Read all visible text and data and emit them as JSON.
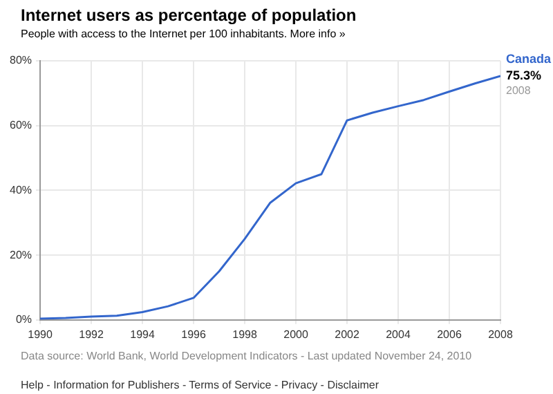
{
  "chart_data": {
    "type": "line",
    "title": "Internet users as percentage of population",
    "subtitle": "People with access to the Internet per 100 inhabitants. More info »",
    "x": [
      1990,
      1991,
      1992,
      1993,
      1994,
      1995,
      1996,
      1997,
      1998,
      1999,
      2000,
      2001,
      2002,
      2003,
      2004,
      2005,
      2006,
      2007,
      2008
    ],
    "series": [
      {
        "name": "Canada",
        "color": "#3366cc",
        "values": [
          0.4,
          0.6,
          1.0,
          1.3,
          2.4,
          4.2,
          6.8,
          15,
          25,
          36.2,
          42.2,
          45,
          61.6,
          64,
          66,
          67.9,
          70.5,
          73,
          75.3
        ],
        "value_labels": [
          null,
          null,
          null,
          null,
          null,
          null,
          null,
          null,
          null,
          null,
          null,
          null,
          null,
          null,
          null,
          null,
          null,
          null,
          "75.3%"
        ]
      }
    ],
    "xlim": [
      1990,
      2008
    ],
    "xticks": [
      1990,
      1992,
      1994,
      1996,
      1998,
      2000,
      2002,
      2004,
      2006,
      2008
    ],
    "ylim": [
      0,
      80
    ],
    "yticks": [
      {
        "value": 0,
        "label": "0%"
      },
      {
        "value": 20,
        "label": "20%"
      },
      {
        "value": 40,
        "label": "40%"
      },
      {
        "value": 60,
        "label": "60%"
      },
      {
        "value": 80,
        "label": "80%"
      }
    ],
    "grid": true,
    "legend": false,
    "marker": "none",
    "line_style": "solid",
    "annotations": [
      {
        "text": "2008",
        "x": 2008,
        "y": 75.3
      },
      "Data source: World Bank, World Development Indicators - Last updated November 24, 2010",
      "Help - Information for Publishers - Terms of Service - Privacy - Disclaimer"
    ]
  }
}
